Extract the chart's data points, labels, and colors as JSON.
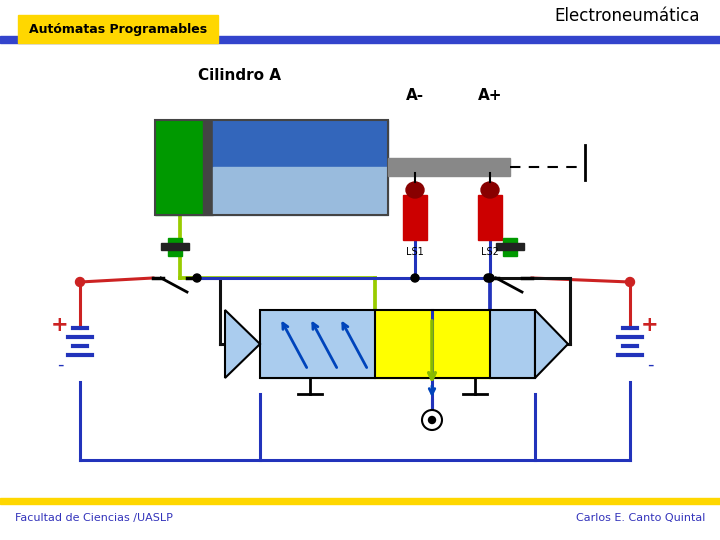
{
  "title": "Electroneumática",
  "subtitle": "Autómatas Programables",
  "cylinder_label": "Cilindro A",
  "am_label": "A-",
  "ap_label": "A+",
  "ls1_label": "LS1",
  "ls2_label": "LS2",
  "footer_left": "Facultad de Ciencias /UASLP",
  "footer_right": "Carlos E. Canto Quintal",
  "bg_color": "#FFFFFF",
  "header_bar_color": "#3344CC",
  "header_yellow_bg": "#FFD700",
  "footer_bar_color": "#FFD700",
  "footer_text_color": "#3333BB",
  "cyl_green": "#009900",
  "cyl_dark": "#444444",
  "cyl_blue_top": "#3366BB",
  "cyl_blue_bot": "#99BBDD",
  "cyl_rod": "#888888",
  "ls_red": "#CC0000",
  "ls_dark_red": "#880000",
  "green_btn": "#009900",
  "valve_yellow": "#FFFF00",
  "valve_lightblue": "#AACCEE",
  "valve_arrow_blue": "#0044BB",
  "valve_arrow_green": "#88BB00",
  "wire_blue": "#2233BB",
  "wire_red": "#CC2222",
  "wire_yg": "#99CC00",
  "wire_black": "#111111",
  "battery_blue1": "#2233BB",
  "battery_blue2": "#2233BB",
  "battery_blue3": "#2233BB",
  "plus_red": "#CC2222",
  "minus_blue": "#2233BB"
}
